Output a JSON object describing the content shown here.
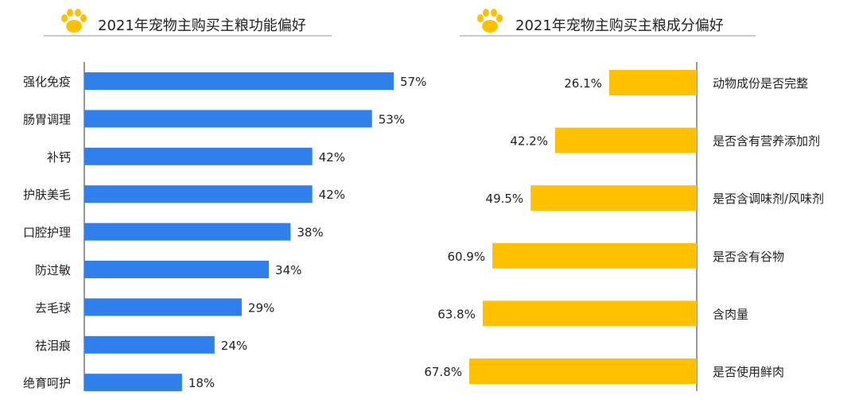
{
  "colors": {
    "blue": "#2f80ed",
    "yellow": "#ffc000",
    "paw": "#ffc000",
    "axis": "#555555"
  },
  "left_panel": {
    "title": "2021年宠物主购买主粮功能偏好",
    "paw_icon": "paw-icon"
  },
  "right_panel": {
    "title": "2021年宠物主购买主粮成分偏好",
    "paw_icon": "paw-icon"
  },
  "chart_data": [
    {
      "type": "bar",
      "orientation": "horizontal",
      "title": "2021年宠物主购买主粮功能偏好",
      "categories": [
        "强化免疫",
        "肠胃调理",
        "补钙",
        "护肤美毛",
        "口腔护理",
        "防过敏",
        "去毛球",
        "祛泪痕",
        "绝育呵护"
      ],
      "values": [
        57,
        53,
        42,
        42,
        38,
        34,
        29,
        24,
        18
      ],
      "labels": [
        "57%",
        "53%",
        "42%",
        "42%",
        "38%",
        "34%",
        "29%",
        "24%",
        "18%"
      ],
      "unit": "%",
      "xlim": [
        0,
        60
      ],
      "grid": false
    },
    {
      "type": "bar",
      "orientation": "horizontal",
      "direction": "right-to-left",
      "title": "2021年宠物主购买主粮成分偏好",
      "categories": [
        "动物成份是否完整",
        "是否含有营养添加剂",
        "是否含调味剂/风味剂",
        "是否含有谷物",
        "含肉量",
        "是否使用鲜肉"
      ],
      "values": [
        26.1,
        42.2,
        49.5,
        60.9,
        63.8,
        67.8
      ],
      "labels": [
        "26.1%",
        "42.2%",
        "49.5%",
        "60.9%",
        "63.8%",
        "67.8%"
      ],
      "unit": "%",
      "xlim": [
        0,
        70
      ],
      "grid": false
    }
  ]
}
